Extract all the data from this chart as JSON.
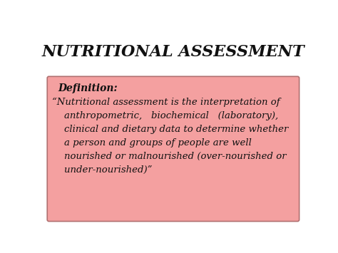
{
  "title": "NUTRITIONAL ASSESSMENT",
  "title_fontsize": 16,
  "bg_color": "#ffffff",
  "box_facecolor": "#f4a0a0",
  "box_edgecolor": "#b07070",
  "definition_label": "Definition:",
  "definition_fontsize": 10,
  "body_text": "“Nutritional assessment is the interpretation of\n    anthropometric,   biochemical   (laboratory),\n    clinical and dietary data to determine whether\n    a person and groups of people are well\n    nourished or malnourished (over-nourished or\n    under-nourished)”",
  "body_fontsize": 9.5,
  "text_color": "#111111"
}
